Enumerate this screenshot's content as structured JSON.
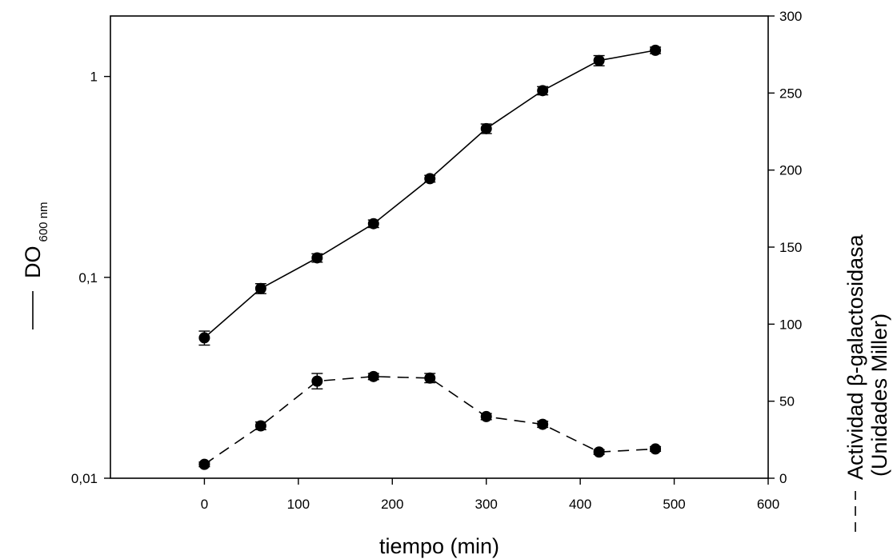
{
  "chart_data": {
    "type": "line",
    "x_axis": {
      "label": "tiempo (min)",
      "range": [
        -100,
        600
      ],
      "ticks": [
        0,
        100,
        200,
        300,
        400,
        500,
        600
      ]
    },
    "y_left_axis": {
      "label_main": "DO",
      "label_sub": "600 nm",
      "label_prefix_line": "solid",
      "scale": "log",
      "range": [
        0.01,
        2
      ],
      "ticks": [
        0.01,
        0.1,
        1
      ],
      "tick_labels": [
        "0,01",
        "0,1",
        "1"
      ]
    },
    "y_right_axis": {
      "label_line1": "Actividad β-galactosidasa",
      "label_line2": "(Unidades Miller)",
      "label_prefix_line": "dashed",
      "scale": "linear",
      "range": [
        0,
        300
      ],
      "ticks": [
        0,
        50,
        100,
        150,
        200,
        250,
        300
      ]
    },
    "series": [
      {
        "axis": "left",
        "line_style": "solid",
        "x": [
          0,
          60,
          120,
          180,
          240,
          300,
          360,
          420,
          480
        ],
        "y": [
          0.05,
          0.088,
          0.125,
          0.185,
          0.31,
          0.55,
          0.85,
          1.2,
          1.35
        ],
        "error": [
          0.004,
          0.005,
          0.006,
          0.008,
          0.012,
          0.03,
          0.04,
          0.07,
          0.05
        ]
      },
      {
        "axis": "right",
        "line_style": "dashed",
        "x": [
          0,
          60,
          120,
          180,
          240,
          300,
          360,
          420,
          480
        ],
        "y": [
          9,
          34,
          63,
          66,
          65,
          40,
          35,
          17,
          19
        ],
        "error": [
          1.5,
          2.5,
          5,
          2,
          3,
          2,
          2,
          1.5,
          1.5
        ]
      }
    ],
    "grid": false,
    "legend": "none"
  }
}
